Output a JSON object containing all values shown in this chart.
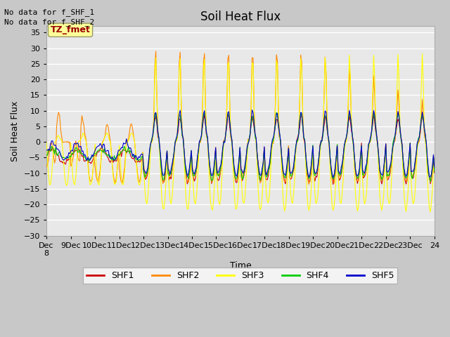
{
  "title": "Soil Heat Flux",
  "ylabel": "Soil Heat Flux",
  "xlabel": "Time",
  "annotations": [
    "No data for f_SHF_1",
    "No data for f_SHF_2"
  ],
  "box_label": "TZ_fmet",
  "box_color": "#ffff99",
  "box_text_color": "#990000",
  "legend_labels": [
    "SHF1",
    "SHF2",
    "SHF3",
    "SHF4",
    "SHF5"
  ],
  "line_colors": [
    "#cc0000",
    "#ff8800",
    "#ffff00",
    "#00cc00",
    "#0000cc"
  ],
  "ylim": [
    -30,
    37
  ],
  "yticks": [
    -30,
    -25,
    -20,
    -15,
    -10,
    -5,
    0,
    5,
    10,
    15,
    20,
    25,
    30,
    35
  ],
  "background_color": "#e8e8e8",
  "grid_color": "#ffffff",
  "title_fontsize": 12,
  "axis_fontsize": 9,
  "tick_fontsize": 8
}
